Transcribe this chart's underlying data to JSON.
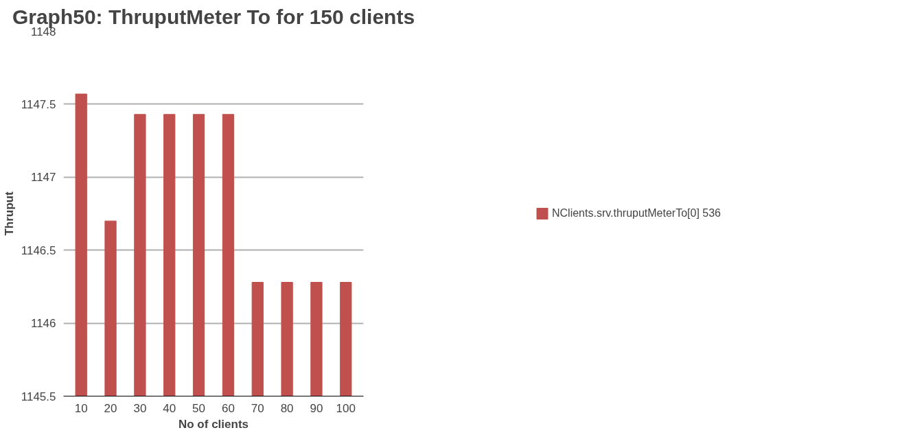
{
  "chart_data": {
    "type": "bar",
    "title": "Graph50: ThruputMeter To for 150 clients",
    "xlabel": "No of clients",
    "ylabel": "Thruput",
    "categories": [
      "10",
      "20",
      "30",
      "40",
      "50",
      "60",
      "70",
      "80",
      "90",
      "100"
    ],
    "series": [
      {
        "name": "NClients.srv.thruputMeterTo[0] 536",
        "color": "#c0504d",
        "values": [
          1147.57,
          1146.7,
          1147.43,
          1147.43,
          1147.43,
          1147.43,
          1146.28,
          1146.28,
          1146.28,
          1146.28
        ]
      }
    ],
    "ylim": [
      1145.5,
      1148
    ],
    "yticks": [
      1145.5,
      1146,
      1146.5,
      1147,
      1147.5,
      1148
    ],
    "grid": "y",
    "legend": "right"
  }
}
